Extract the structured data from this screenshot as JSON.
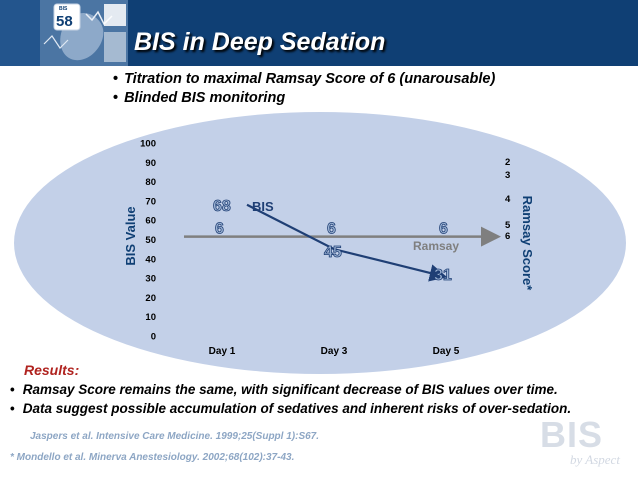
{
  "slide": {
    "title": "BIS in Deep Sedation",
    "bullets": [
      "Titration to maximal Ramsay Score of 6 (unarousable)",
      "Blinded BIS monitoring"
    ],
    "results_label": "Results:",
    "findings": [
      "Ramsay Score remains the same, with significant decrease of BIS values over time.",
      "Data suggest possible accumulation of sedatives and inherent risks of over-sedation."
    ],
    "references": [
      "Jaspers et al. Intensive Care Medicine. 1999;25(Suppl 1):S67.",
      "* Mondello et al. Minerva Anestesiology. 2002;68(102):37-43."
    ],
    "logo": {
      "badge_number": "58",
      "badge_tag": "BIS"
    },
    "brand": {
      "name": "BIS",
      "tagline": "by Aspect"
    }
  },
  "colors": {
    "header": "#0f3f74",
    "ellipse": "#c3d0e8",
    "bis_line": "#1f3f75",
    "ramsay_line": "#7f7f7f",
    "results_label": "#b0231f"
  },
  "chart_data": {
    "type": "line",
    "categories": [
      "Day 1",
      "Day 3",
      "Day 5"
    ],
    "ylabel": "BIS Value",
    "y2label": "Ramsay Score*",
    "yticks": [
      0,
      10,
      20,
      30,
      40,
      50,
      60,
      70,
      80,
      90,
      100
    ],
    "ylim": [
      0,
      100
    ],
    "y2_tick_labels": [
      "2",
      "3",
      "4",
      "5",
      "6"
    ],
    "grid": false,
    "series": [
      {
        "name": "BIS",
        "values": [
          68,
          45,
          31
        ],
        "labels": [
          "68",
          "45",
          "31"
        ]
      },
      {
        "name": "Ramsay",
        "values": [
          6,
          6,
          6
        ],
        "labels": [
          "6",
          "6",
          "6"
        ]
      }
    ]
  }
}
